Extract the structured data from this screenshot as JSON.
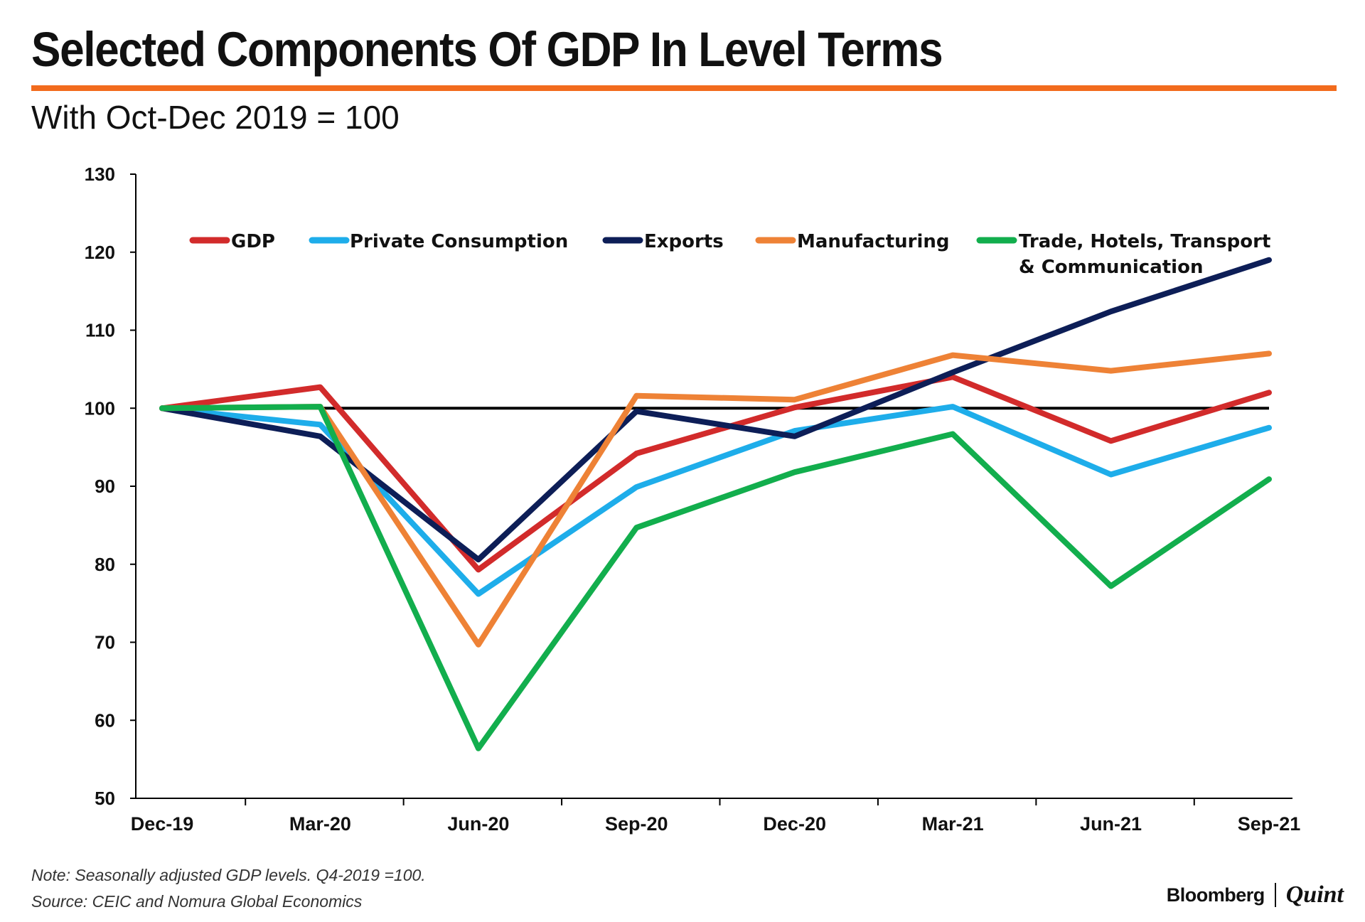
{
  "header": {
    "title": "Selected Components Of GDP In Level Terms",
    "subtitle": "With Oct-Dec 2019 = 100"
  },
  "footer": {
    "note": "Note: Seasonally adjusted GDP levels. Q4-2019 =100.",
    "source": "Source: CEIC and Nomura Global Economics",
    "brand_left": "Bloomberg",
    "brand_right": "Quint"
  },
  "colors": {
    "accent_rule": "#F26B1D",
    "baseline": "#000000",
    "axis": "#000000"
  },
  "chart_data": {
    "type": "line",
    "x": [
      "Dec-19",
      "Mar-20",
      "Jun-20",
      "Sep-20",
      "Dec-20",
      "Mar-21",
      "Jun-21",
      "Sep-21"
    ],
    "ylim": [
      50,
      130
    ],
    "yticks": [
      50,
      60,
      70,
      80,
      90,
      100,
      110,
      120,
      130
    ],
    "reference_line": 100,
    "grid": false,
    "legend_position": "top",
    "series": [
      {
        "name": "GDP",
        "color": "#D22B2B",
        "values": [
          100,
          102.7,
          79.3,
          94.2,
          100.1,
          104.0,
          95.8,
          102.0
        ]
      },
      {
        "name": "Private Consumption",
        "color": "#1EADEA",
        "values": [
          100,
          97.9,
          76.2,
          89.9,
          97.1,
          100.2,
          91.5,
          97.5
        ]
      },
      {
        "name": "Exports",
        "color": "#0D1E57",
        "values": [
          100,
          96.4,
          80.6,
          99.6,
          96.4,
          104.6,
          112.4,
          119.0
        ]
      },
      {
        "name": "Manufacturing",
        "color": "#EE8236",
        "values": [
          100,
          100.2,
          69.7,
          101.6,
          101.1,
          106.8,
          104.8,
          107.0
        ]
      },
      {
        "name": "Trade, Hotels, Transport & Communication",
        "legend_lines": [
          "Trade, Hotels, Transport",
          "& Communication"
        ],
        "color": "#12AE4D",
        "values": [
          100,
          100.2,
          56.4,
          84.7,
          91.8,
          96.7,
          77.2,
          90.9
        ]
      }
    ]
  }
}
